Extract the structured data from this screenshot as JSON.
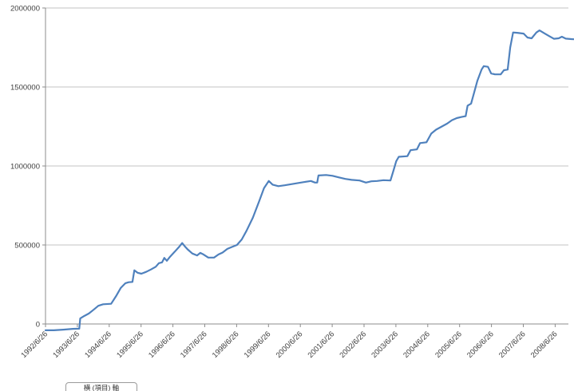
{
  "chart_data": {
    "type": "line",
    "title": "",
    "xlabel": "",
    "ylabel": "",
    "grid": true,
    "legend_position": "none",
    "ylim": [
      0,
      2000000
    ],
    "y_ticks": [
      0,
      500000,
      1000000,
      1500000,
      2000000
    ],
    "y_tick_labels": [
      "0",
      "500000",
      "1000000",
      "1500000",
      "2000000"
    ],
    "x_tick_labels": [
      "1992/6/26",
      "1993/6/26",
      "1994/6/26",
      "1995/6/26",
      "1996/6/26",
      "1997/6/26",
      "1998/6/26",
      "1999/6/26",
      "2000/6/26",
      "2001/6/26",
      "2002/6/26",
      "2003/6/26",
      "2004/6/26",
      "2005/6/26",
      "2006/6/26",
      "2007/6/26",
      "2008/6/26"
    ],
    "x_start_year": 1992.49,
    "x_years_per_tick": 1,
    "axis_tooltip": {
      "text": "横 (項目) 軸"
    },
    "colors": {
      "line": "#4f81bd",
      "gridline": "#c3c3c3",
      "axis": "#8c8c8c",
      "tick_label": "#3f3f3f",
      "background": "#ffffff"
    },
    "series": [
      {
        "color": "#4f81bd",
        "points": [
          [
            1992.49,
            -40000
          ],
          [
            1992.75,
            -40000
          ],
          [
            1993.05,
            -36000
          ],
          [
            1993.35,
            -31000
          ],
          [
            1993.55,
            -30000
          ],
          [
            1993.58,
            35000
          ],
          [
            1993.7,
            50000
          ],
          [
            1993.85,
            66000
          ],
          [
            1994.0,
            90000
          ],
          [
            1994.15,
            115000
          ],
          [
            1994.3,
            125000
          ],
          [
            1994.55,
            128000
          ],
          [
            1994.7,
            175000
          ],
          [
            1994.85,
            228000
          ],
          [
            1995.0,
            258000
          ],
          [
            1995.1,
            264000
          ],
          [
            1995.22,
            266000
          ],
          [
            1995.28,
            340000
          ],
          [
            1995.38,
            324000
          ],
          [
            1995.5,
            318000
          ],
          [
            1995.65,
            330000
          ],
          [
            1995.8,
            345000
          ],
          [
            1995.95,
            362000
          ],
          [
            1996.05,
            385000
          ],
          [
            1996.15,
            390000
          ],
          [
            1996.22,
            418000
          ],
          [
            1996.3,
            400000
          ],
          [
            1996.4,
            426000
          ],
          [
            1996.55,
            458000
          ],
          [
            1996.7,
            492000
          ],
          [
            1996.78,
            512000
          ],
          [
            1996.86,
            492000
          ],
          [
            1996.95,
            472000
          ],
          [
            1997.1,
            446000
          ],
          [
            1997.25,
            434000
          ],
          [
            1997.35,
            450000
          ],
          [
            1997.45,
            440000
          ],
          [
            1997.6,
            420000
          ],
          [
            1997.78,
            420000
          ],
          [
            1997.92,
            440000
          ],
          [
            1998.05,
            452000
          ],
          [
            1998.2,
            475000
          ],
          [
            1998.35,
            488000
          ],
          [
            1998.5,
            500000
          ],
          [
            1998.65,
            535000
          ],
          [
            1998.8,
            590000
          ],
          [
            1999.0,
            672000
          ],
          [
            1999.2,
            778000
          ],
          [
            1999.35,
            860000
          ],
          [
            1999.5,
            905000
          ],
          [
            1999.62,
            882000
          ],
          [
            1999.8,
            872000
          ],
          [
            2000.0,
            878000
          ],
          [
            2000.3,
            888000
          ],
          [
            2000.6,
            898000
          ],
          [
            2000.82,
            905000
          ],
          [
            2000.95,
            895000
          ],
          [
            2001.02,
            895000
          ],
          [
            2001.06,
            940000
          ],
          [
            2001.3,
            943000
          ],
          [
            2001.5,
            938000
          ],
          [
            2001.7,
            928000
          ],
          [
            2001.9,
            918000
          ],
          [
            2002.1,
            912000
          ],
          [
            2002.35,
            908000
          ],
          [
            2002.55,
            895000
          ],
          [
            2002.72,
            903000
          ],
          [
            2002.9,
            905000
          ],
          [
            2003.1,
            910000
          ],
          [
            2003.32,
            908000
          ],
          [
            2003.42,
            975000
          ],
          [
            2003.5,
            1030000
          ],
          [
            2003.58,
            1058000
          ],
          [
            2003.85,
            1062000
          ],
          [
            2003.95,
            1100000
          ],
          [
            2004.15,
            1105000
          ],
          [
            2004.25,
            1145000
          ],
          [
            2004.45,
            1150000
          ],
          [
            2004.6,
            1205000
          ],
          [
            2004.75,
            1230000
          ],
          [
            2004.95,
            1252000
          ],
          [
            2005.1,
            1268000
          ],
          [
            2005.25,
            1290000
          ],
          [
            2005.4,
            1303000
          ],
          [
            2005.55,
            1310000
          ],
          [
            2005.68,
            1315000
          ],
          [
            2005.74,
            1382000
          ],
          [
            2005.85,
            1395000
          ],
          [
            2005.95,
            1468000
          ],
          [
            2006.05,
            1540000
          ],
          [
            2006.18,
            1610000
          ],
          [
            2006.25,
            1632000
          ],
          [
            2006.38,
            1628000
          ],
          [
            2006.48,
            1586000
          ],
          [
            2006.6,
            1580000
          ],
          [
            2006.78,
            1580000
          ],
          [
            2006.88,
            1606000
          ],
          [
            2007.0,
            1610000
          ],
          [
            2007.08,
            1750000
          ],
          [
            2007.17,
            1845000
          ],
          [
            2007.3,
            1843000
          ],
          [
            2007.5,
            1838000
          ],
          [
            2007.62,
            1813000
          ],
          [
            2007.75,
            1808000
          ],
          [
            2007.9,
            1845000
          ],
          [
            2008.0,
            1858000
          ],
          [
            2008.15,
            1840000
          ],
          [
            2008.3,
            1822000
          ],
          [
            2008.45,
            1805000
          ],
          [
            2008.6,
            1808000
          ],
          [
            2008.7,
            1818000
          ],
          [
            2008.82,
            1806000
          ],
          [
            2009.0,
            1803000
          ],
          [
            2009.1,
            1802000
          ]
        ]
      }
    ]
  }
}
